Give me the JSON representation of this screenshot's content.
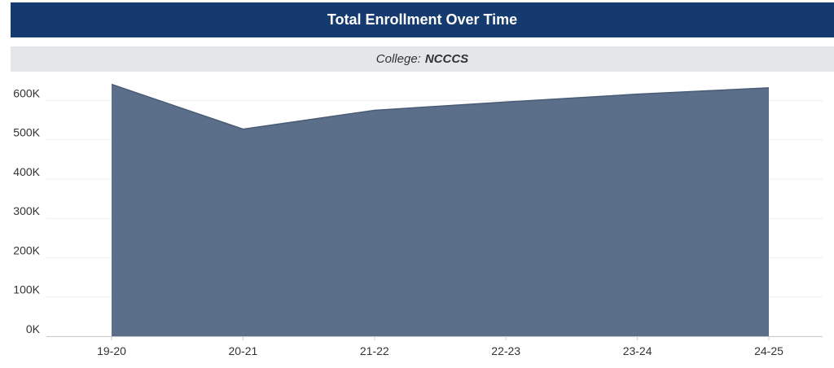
{
  "header": {
    "title": "Total Enrollment Over Time"
  },
  "filter": {
    "label": "College:",
    "value": "NCCCS"
  },
  "chart_data": {
    "type": "area",
    "title": "Total Enrollment Over Time",
    "xlabel": "",
    "ylabel": "",
    "categories": [
      "19-20",
      "20-21",
      "21-22",
      "22-23",
      "23-24",
      "24-25"
    ],
    "series": [
      {
        "values": [
          641000,
          527000,
          575000,
          596000,
          616000,
          632000
        ]
      }
    ],
    "ylim": [
      0,
      665000
    ],
    "yticks": [
      0,
      100000,
      200000,
      300000,
      400000,
      500000,
      600000
    ],
    "ytick_labels": [
      "0K",
      "100K",
      "200K",
      "300K",
      "400K",
      "500K",
      "600K"
    ],
    "grid": true,
    "legend": "none",
    "colors": {
      "fill": "#5c6f8a",
      "stroke": "#4a5b75",
      "grid": "#eeeeee",
      "axis": "#cccccc",
      "tick_text": "#333333"
    }
  }
}
